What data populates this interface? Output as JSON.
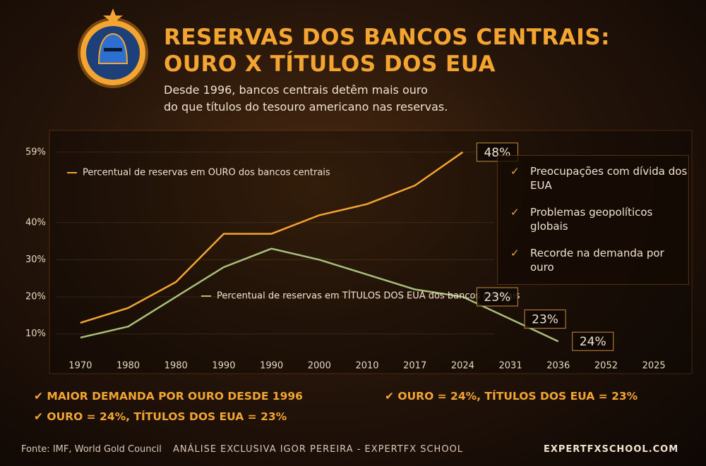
{
  "header": {
    "title_line1": "RESERVAS DOS BANCOS CENTRAIS:",
    "title_line2": "OURO X TÍTULOS DOS EUA",
    "subtitle_line1": "Desde 1996, bancos centrais detêm mais ouro",
    "subtitle_line2": "do que títulos do tesouro americano nas reservas."
  },
  "chart_data": {
    "type": "line",
    "categories": [
      "1970",
      "1980",
      "1980",
      "1990",
      "1990",
      "2000",
      "2010",
      "2017",
      "2024",
      "2031",
      "2036",
      "2052",
      "2025"
    ],
    "series": [
      {
        "name": "Percentual de reservas em OURO dos bancos centrais",
        "color": "#f4a531",
        "values": [
          13,
          17,
          24,
          37,
          37,
          42,
          45,
          50,
          59,
          null,
          null,
          null,
          null
        ]
      },
      {
        "name": "Percentual de reservas em TÍTULOS DOS EUA dos bancos centrais",
        "color": "#a9c07a",
        "values": [
          9,
          12,
          20,
          28,
          33,
          30,
          26,
          22,
          20,
          14,
          8,
          null,
          null
        ]
      }
    ],
    "ylim": [
      5,
      62
    ],
    "yticks": [
      {
        "value": 59,
        "label": "59%"
      },
      {
        "value": 40,
        "label": "40%"
      },
      {
        "value": 30,
        "label": "30%"
      },
      {
        "value": 20,
        "label": "20%"
      },
      {
        "value": 10,
        "label": "10%"
      }
    ],
    "annotations": [
      {
        "value": 48,
        "label": "48%"
      },
      {
        "value": 23,
        "label": "23%"
      },
      {
        "value": 23,
        "label": "23%"
      },
      {
        "value": 24,
        "label": "24%"
      }
    ]
  },
  "side_notes": [
    "Preocupações com dívida dos EUA",
    "Problemas geopolíticos globais",
    "Recorde na demanda por ouro"
  ],
  "highlights": [
    "MAIOR DEMANDA POR OURO DESDE 1996",
    "OURO = 24%, TÍTULOS DOS EUA = 23%",
    "OURO = 24%, TÍTULOS DOS EUA = 23%"
  ],
  "footer": {
    "source": "Fonte: IMF, World Gold Council",
    "credit": "ANÁLISE EXCLUSIVA IGOR PEREIRA - EXPERTFX SCHOOL",
    "site": "EXPERTFXSCHOOL.COM"
  }
}
